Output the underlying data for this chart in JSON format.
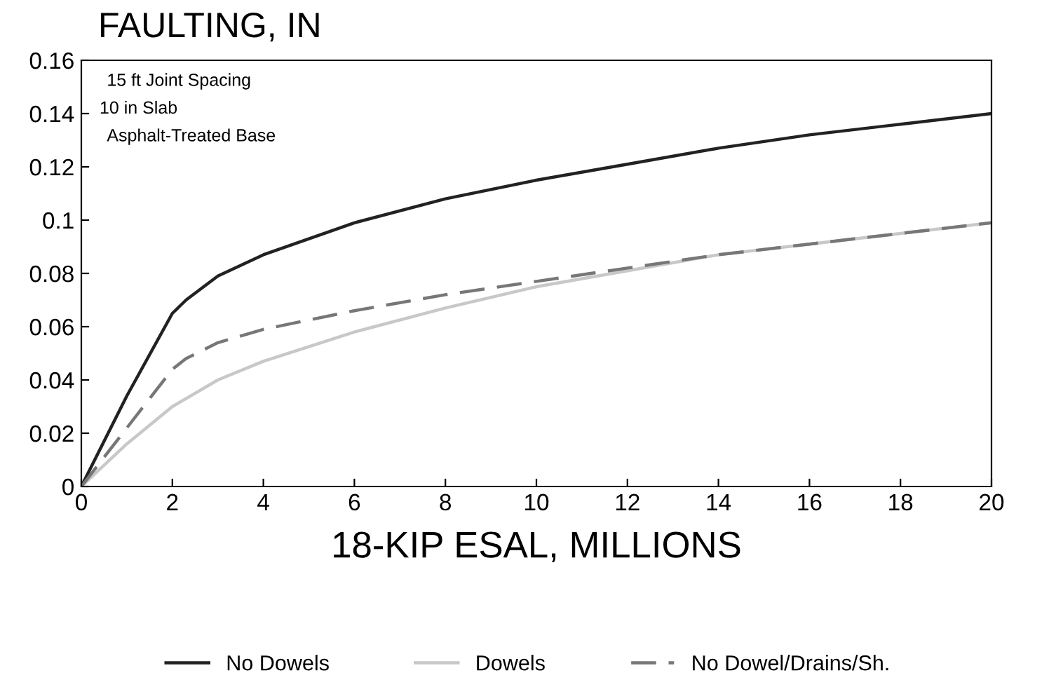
{
  "chart_data": {
    "type": "line",
    "title": "FAULTING, IN",
    "xlabel": "18-KIP ESAL, MILLIONS",
    "annotations": [
      "15 ft Joint Spacing",
      "10 in Slab",
      "Asphalt-Treated Base"
    ],
    "x": [
      0,
      1,
      2,
      2.3,
      3,
      4,
      6,
      8,
      10,
      12,
      14,
      16,
      18,
      20
    ],
    "series": [
      {
        "name": "No Dowels",
        "color": "#222222",
        "line_style": "solid",
        "values": [
          0,
          0.034,
          0.065,
          0.07,
          0.079,
          0.087,
          0.099,
          0.108,
          0.115,
          0.121,
          0.127,
          0.132,
          0.136,
          0.14
        ]
      },
      {
        "name": "Dowels",
        "color": "#c8c8c8",
        "line_style": "solid",
        "values": [
          0,
          0.016,
          0.03,
          0.033,
          0.04,
          0.047,
          0.058,
          0.067,
          0.075,
          0.081,
          0.087,
          0.091,
          0.095,
          0.099
        ]
      },
      {
        "name": "No Dowel/Drains/Sh.",
        "color": "#777777",
        "line_style": "dashed",
        "values": [
          0,
          0.022,
          0.044,
          0.048,
          0.054,
          0.059,
          0.066,
          0.072,
          0.077,
          0.082,
          0.087,
          0.091,
          0.095,
          0.099
        ]
      }
    ],
    "xlim": [
      0,
      20
    ],
    "xticks": [
      0,
      2,
      4,
      6,
      8,
      10,
      12,
      14,
      16,
      18,
      20
    ],
    "ylim": [
      0,
      0.16
    ],
    "yticks": [
      0,
      0.02,
      0.04,
      0.06,
      0.08,
      {
        "value": 0.1,
        "label": "0.1"
      },
      0.12,
      0.14,
      0.16
    ],
    "grid": false,
    "legend": "bottom",
    "marker": "none"
  }
}
